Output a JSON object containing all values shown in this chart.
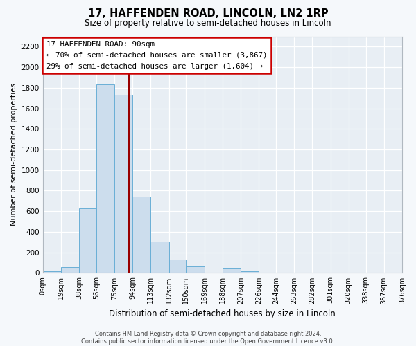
{
  "title": "17, HAFFENDEN ROAD, LINCOLN, LN2 1RP",
  "subtitle": "Size of property relative to semi-detached houses in Lincoln",
  "xlabel": "Distribution of semi-detached houses by size in Lincoln",
  "ylabel": "Number of semi-detached properties",
  "bin_labels": [
    "0sqm",
    "19sqm",
    "38sqm",
    "56sqm",
    "75sqm",
    "94sqm",
    "113sqm",
    "132sqm",
    "150sqm",
    "169sqm",
    "188sqm",
    "207sqm",
    "226sqm",
    "244sqm",
    "263sqm",
    "282sqm",
    "301sqm",
    "320sqm",
    "338sqm",
    "357sqm",
    "376sqm"
  ],
  "bin_edges": [
    0,
    19,
    38,
    56,
    75,
    94,
    113,
    132,
    150,
    169,
    188,
    207,
    226,
    244,
    263,
    282,
    301,
    320,
    338,
    357,
    376
  ],
  "bar_heights": [
    15,
    60,
    630,
    1830,
    1730,
    740,
    305,
    130,
    65,
    0,
    40,
    15,
    5,
    0,
    0,
    0,
    0,
    0,
    0,
    0
  ],
  "bar_color": "#ccdded",
  "bar_edge_color": "#6aafd6",
  "property_value": 90,
  "vline_color": "#990000",
  "annotation_title": "17 HAFFENDEN ROAD: 90sqm",
  "annotation_line1": "← 70% of semi-detached houses are smaller (3,867)",
  "annotation_line2": "29% of semi-detached houses are larger (1,604) →",
  "annotation_box_facecolor": "#ffffff",
  "annotation_box_edgecolor": "#cc0000",
  "ylim": [
    0,
    2300
  ],
  "yticks": [
    0,
    200,
    400,
    600,
    800,
    1000,
    1200,
    1400,
    1600,
    1800,
    2000,
    2200
  ],
  "footer_line1": "Contains HM Land Registry data © Crown copyright and database right 2024.",
  "footer_line2": "Contains public sector information licensed under the Open Government Licence v3.0.",
  "plot_bg_color": "#e8eef4",
  "fig_bg_color": "#f5f8fb",
  "grid_color": "#ffffff",
  "spine_color": "#b0b8c0"
}
